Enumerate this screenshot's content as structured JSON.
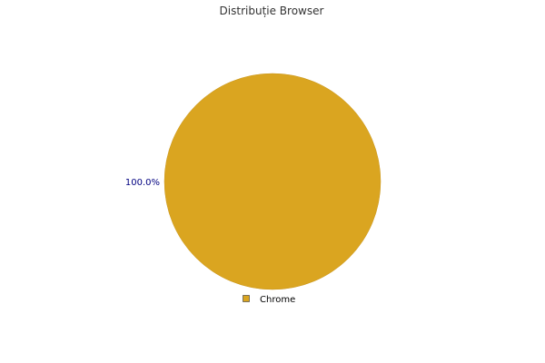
{
  "chart_data": {
    "type": "pie",
    "title": "Distribuție Browser",
    "slices": [
      {
        "label": "Chrome",
        "value": 100.0,
        "display": "100.0%",
        "color": "#DAA520"
      }
    ],
    "legend_position": "bottom",
    "label_color": "#000080"
  }
}
